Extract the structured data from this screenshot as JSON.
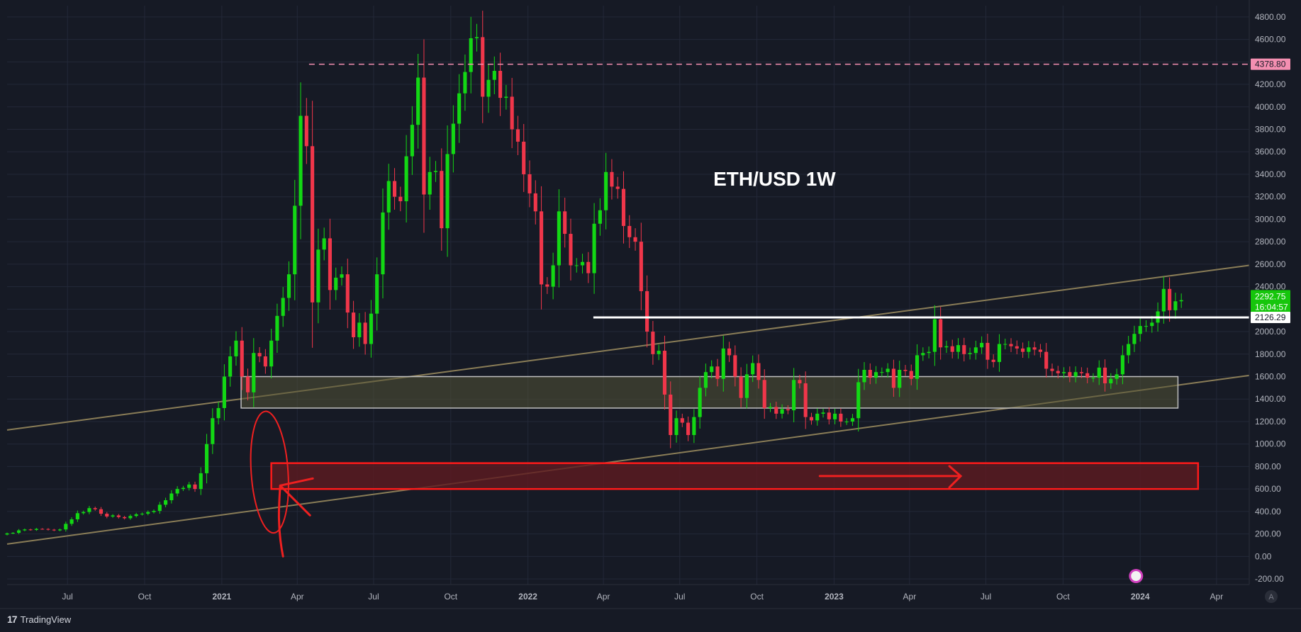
{
  "chart_data": {
    "type": "candlestick",
    "title": "ETH/USD  1W",
    "interval": "1W",
    "ylim": [
      -250,
      4900
    ],
    "y_ticks": [
      4800,
      4600,
      4400,
      4200,
      4000,
      3800,
      3600,
      3400,
      3200,
      3000,
      2800,
      2600,
      2400,
      2200,
      2000,
      1800,
      1600,
      1400,
      1200,
      1000,
      800,
      600,
      400,
      200,
      0,
      -200
    ],
    "y_tick_labels": [
      "4800.00",
      "4600.00",
      "4400.00",
      "4200.00",
      "4000.00",
      "3800.00",
      "3600.00",
      "3400.00",
      "3200.00",
      "3000.00",
      "2800.00",
      "2600.00",
      "2400.00",
      "2200.00",
      "2000.00",
      "1800.00",
      "1600.00",
      "1400.00",
      "1200.00",
      "1000.00",
      "800.00",
      "600.00",
      "400.00",
      "200.00",
      "0.00",
      "-200.00"
    ],
    "x_range": [
      "2020-04-20",
      "2024-05-10"
    ],
    "x_ticks": [
      {
        "date": "2020-07-01",
        "label": "Jul",
        "bold": false
      },
      {
        "date": "2020-10-01",
        "label": "Oct",
        "bold": false
      },
      {
        "date": "2021-01-01",
        "label": "2021",
        "bold": true
      },
      {
        "date": "2021-04-01",
        "label": "Apr",
        "bold": false
      },
      {
        "date": "2021-07-01",
        "label": "Jul",
        "bold": false
      },
      {
        "date": "2021-10-01",
        "label": "Oct",
        "bold": false
      },
      {
        "date": "2022-01-01",
        "label": "2022",
        "bold": true
      },
      {
        "date": "2022-04-01",
        "label": "Apr",
        "bold": false
      },
      {
        "date": "2022-07-01",
        "label": "Jul",
        "bold": false
      },
      {
        "date": "2022-10-01",
        "label": "Oct",
        "bold": false
      },
      {
        "date": "2023-01-01",
        "label": "2023",
        "bold": true
      },
      {
        "date": "2023-04-01",
        "label": "Apr",
        "bold": false
      },
      {
        "date": "2023-07-01",
        "label": "Jul",
        "bold": false
      },
      {
        "date": "2023-10-01",
        "label": "Oct",
        "bold": false
      },
      {
        "date": "2024-01-01",
        "label": "2024",
        "bold": true
      },
      {
        "date": "2024-04-01",
        "label": "Apr",
        "bold": false
      }
    ],
    "closes": [
      205,
      210,
      232,
      240,
      236,
      245,
      244,
      238,
      232,
      240,
      290,
      330,
      385,
      395,
      430,
      420,
      380,
      355,
      365,
      350,
      340,
      360,
      375,
      380,
      395,
      405,
      460,
      500,
      560,
      600,
      610,
      640,
      600,
      740,
      1000,
      1230,
      1320,
      1600,
      1780,
      1920,
      1600,
      1460,
      1810,
      1780,
      1690,
      1920,
      2140,
      2300,
      2510,
      3120,
      3920,
      3650,
      2260,
      2730,
      2830,
      2370,
      2480,
      2510,
      2170,
      1950,
      2080,
      1890,
      2160,
      2510,
      3060,
      3340,
      3200,
      3160,
      3560,
      3840,
      4260,
      3220,
      3420,
      3430,
      2920,
      3580,
      3850,
      4120,
      4310,
      4610,
      4620,
      4090,
      4240,
      4320,
      4080,
      4090,
      3800,
      3690,
      3400,
      3230,
      3070,
      2420,
      2400,
      2590,
      3070,
      2870,
      2590,
      2590,
      2620,
      2520,
      2960,
      3080,
      3420,
      3290,
      3270,
      2940,
      2840,
      2800,
      2360,
      2000,
      1800,
      1830,
      1440,
      1080,
      1230,
      1190,
      1080,
      1240,
      1500,
      1640,
      1690,
      1580,
      1850,
      1790,
      1600,
      1410,
      1620,
      1720,
      1570,
      1320,
      1330,
      1270,
      1310,
      1300,
      1570,
      1540,
      1240,
      1210,
      1270,
      1280,
      1220,
      1270,
      1200,
      1200,
      1230,
      1550,
      1660,
      1590,
      1640,
      1640,
      1670,
      1500,
      1660,
      1650,
      1580,
      1790,
      1810,
      1820,
      2110,
      1860,
      1870,
      1820,
      1880,
      1800,
      1810,
      1860,
      1900,
      1750,
      1730,
      1890,
      1890,
      1870,
      1850,
      1820,
      1860,
      1840,
      1820,
      1670,
      1650,
      1630,
      1640,
      1600,
      1640,
      1630,
      1590,
      1590,
      1680,
      1540,
      1580,
      1620,
      1790,
      1890,
      1980,
      2050,
      2050,
      2080,
      2180,
      2380,
      2190,
      2270,
      2280
    ],
    "annotations": {
      "resistance_price": 4378.8,
      "resistance_label": "4378.80",
      "support_line_price": 2126.29,
      "support_line_label": "2126.29",
      "current_price_label": "2292.75",
      "countdown_label": "16:04:57",
      "yellow_zone": [
        1320,
        1600
      ],
      "red_zone": [
        600,
        830
      ]
    },
    "colors": {
      "background": "#161a25",
      "up": "#13d814",
      "down": "#f0364a",
      "grid": "#232838",
      "axis_text": "#b2b5be",
      "resistance": "#f48fb1",
      "trendline": "#8a7d57",
      "zone_fill": "#545437",
      "zone_stroke": "#c0c0c0",
      "red_zone_fill": "#5e1a20",
      "red_zone_stroke": "#ff1a1a",
      "annotation_red": "#ef2020"
    }
  },
  "footer": {
    "brand": "TradingView"
  },
  "axis": {
    "auto_scale_button": "A"
  }
}
